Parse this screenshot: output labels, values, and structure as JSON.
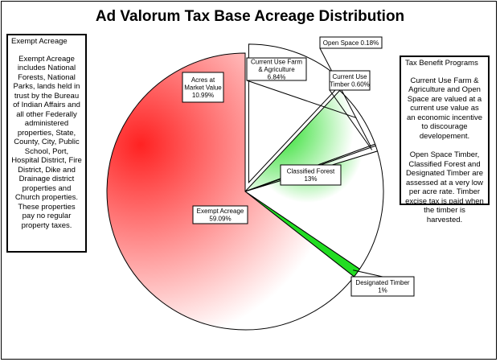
{
  "title": "Ad Valorum Tax Base Acreage Distribution",
  "left_box": {
    "heading": "Exempt Acreage",
    "body": "Exempt Acreage includes National Forests, National Parks, lands held in trust by the Bureau of Indian Affairs and all other Federally administered properties, State, County, City, Public School, Port, Hospital District, Fire District, Dike and Drainage district properties and Church properties. These properties pay no regular property taxes."
  },
  "right_box": {
    "heading": "Tax Benefit Programs",
    "paragraph1": "Current Use Farm & Agriculture and Open Space are valued at a current use value as an economic incentive to discourage developement.",
    "paragraph2": "Open Space Timber, Classified Forest and Designated Timber are assessed at a very low per acre rate. Timber excise tax is paid when the timber is harvested."
  },
  "chart_data": {
    "type": "pie",
    "title": "Ad Valorum Tax Base Acreage Distribution",
    "slices": [
      {
        "label_line1": "Acres at",
        "label_line2": "Market Value",
        "label_line3": "10.99%",
        "value": 10.99,
        "color": "#4466ee",
        "exploded": true
      },
      {
        "label_line1": "Current Use Farm",
        "label_line2": "& Agriculture",
        "label_line3": "6.84%",
        "value": 6.84,
        "color": "#22dd22"
      },
      {
        "label_line1": "Open Space 0.18%",
        "value": 0.18,
        "color": "#22dd22"
      },
      {
        "label_line1": "Current Use",
        "label_line2": "Timber 0.60%",
        "value": 0.6,
        "color": "#22dd22"
      },
      {
        "label_line1": "Classified Forest",
        "label_line2": "13%",
        "value": 13.0,
        "color": "#22dd22"
      },
      {
        "label_line1": "Designated Timber",
        "label_line2": "1%",
        "value": 1.0,
        "color": "#22dd22"
      },
      {
        "label_line1": "Exempt Acreage",
        "label_line2": "59.09%",
        "value": 59.09,
        "color": "#ee2222"
      }
    ]
  }
}
